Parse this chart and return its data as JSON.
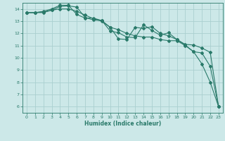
{
  "xlabel": "Humidex (Indice chaleur)",
  "ylabel": "",
  "bg_color": "#cce8e8",
  "grid_color": "#aad0d0",
  "line_color": "#2a7a6a",
  "tick_color": "#2a7a6a",
  "xlim": [
    -0.5,
    23.5
  ],
  "ylim": [
    5.5,
    14.5
  ],
  "xticks": [
    0,
    1,
    2,
    3,
    4,
    5,
    6,
    7,
    8,
    9,
    10,
    11,
    12,
    13,
    14,
    15,
    16,
    17,
    18,
    19,
    20,
    21,
    22,
    23
  ],
  "yticks": [
    6,
    7,
    8,
    9,
    10,
    11,
    12,
    13,
    14
  ],
  "line1_x": [
    0,
    1,
    2,
    3,
    4,
    5,
    6,
    7,
    8,
    9,
    10,
    11,
    12,
    13,
    14,
    15,
    16,
    17,
    18,
    19,
    20,
    21,
    22,
    23
  ],
  "line1_y": [
    13.7,
    13.7,
    13.75,
    13.9,
    14.2,
    14.25,
    14.15,
    13.3,
    13.1,
    13.05,
    12.5,
    11.55,
    11.5,
    12.5,
    12.4,
    12.55,
    12.0,
    11.8,
    11.5,
    11.05,
    10.5,
    10.4,
    9.3,
    6.0
  ],
  "line2_x": [
    0,
    1,
    2,
    3,
    4,
    5,
    6,
    7,
    8,
    9,
    10,
    11,
    12,
    13,
    14,
    15,
    16,
    17,
    18,
    19,
    20,
    21,
    22,
    23
  ],
  "line2_y": [
    13.7,
    13.7,
    13.8,
    14.0,
    14.3,
    14.3,
    13.55,
    13.25,
    13.25,
    13.05,
    12.2,
    12.05,
    11.7,
    11.65,
    12.7,
    12.25,
    11.85,
    12.05,
    11.5,
    11.1,
    11.05,
    10.8,
    10.45,
    6.0
  ],
  "line3_x": [
    0,
    1,
    2,
    3,
    4,
    5,
    6,
    7,
    8,
    9,
    10,
    11,
    12,
    13,
    14,
    15,
    16,
    17,
    18,
    19,
    20,
    21,
    22,
    23
  ],
  "line3_y": [
    13.7,
    13.7,
    13.7,
    13.9,
    14.0,
    14.0,
    13.8,
    13.5,
    13.2,
    13.0,
    12.5,
    12.3,
    12.0,
    11.8,
    11.7,
    11.7,
    11.5,
    11.4,
    11.4,
    11.0,
    10.5,
    9.5,
    8.0,
    6.0
  ]
}
